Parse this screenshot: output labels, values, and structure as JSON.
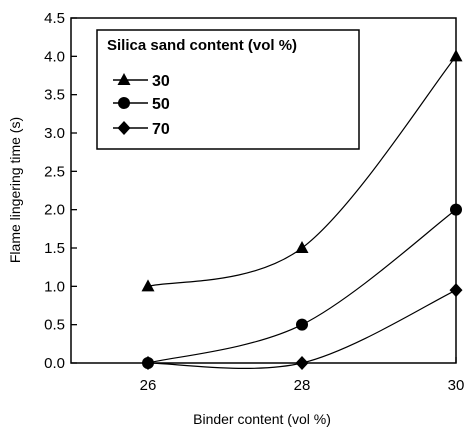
{
  "chart_data": {
    "type": "line",
    "xlabel": "Binder content (vol %)",
    "ylabel": "Flame lingering time (s)",
    "x": [
      26,
      28,
      30
    ],
    "xlim": [
      25,
      30
    ],
    "ylim": [
      0,
      4.5
    ],
    "xticks": [
      "26",
      "28",
      "30"
    ],
    "yticks": [
      "0.0",
      "0.5",
      "1.0",
      "1.5",
      "2.0",
      "2.5",
      "3.0",
      "3.5",
      "4.0",
      "4.5"
    ],
    "legend": {
      "title": "Silica sand content (vol %)",
      "placement": "top-left"
    },
    "series": [
      {
        "name": "30",
        "marker": "triangle",
        "values": [
          1.0,
          1.5,
          4.0
        ]
      },
      {
        "name": "50",
        "marker": "circle",
        "values": [
          0.0,
          0.5,
          2.0
        ]
      },
      {
        "name": "70",
        "marker": "diamond",
        "values": [
          0.0,
          0.0,
          0.95
        ]
      }
    ],
    "grid": false,
    "colors": {
      "ink": "#000000",
      "background": "#ffffff"
    }
  }
}
